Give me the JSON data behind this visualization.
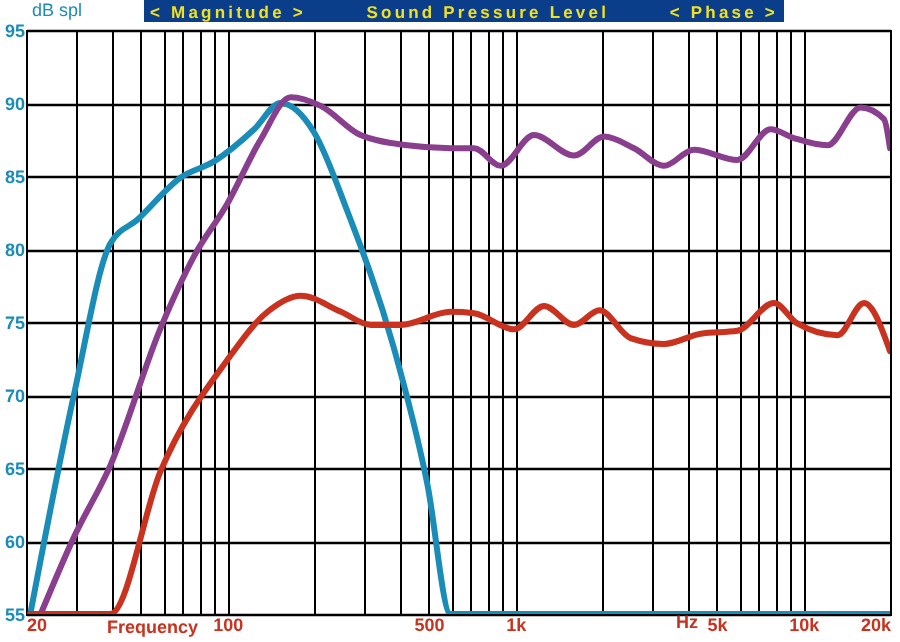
{
  "chart_data": {
    "type": "line",
    "title": "Sound Pressure Level",
    "ylabel": "dB spl",
    "xlabel": "Frequency",
    "annotations": [
      "< Magnitude >",
      "< Phase >",
      "Hz"
    ],
    "log": "x",
    "grid": true,
    "marker": "none",
    "line_style": "solid",
    "xlim": [
      20,
      20000
    ],
    "ylim": [
      55,
      95
    ],
    "xticks": [
      20,
      {
        "value": 30,
        "label": null
      },
      {
        "value": 40,
        "label": null
      },
      {
        "value": 50,
        "label": null
      },
      {
        "value": 60,
        "label": null
      },
      {
        "value": 70,
        "label": null
      },
      {
        "value": 80,
        "label": null
      },
      {
        "value": 90,
        "label": null
      },
      100,
      {
        "value": 200,
        "label": null
      },
      {
        "value": 300,
        "label": null
      },
      {
        "value": 400,
        "label": null
      },
      500,
      {
        "value": 600,
        "label": null
      },
      {
        "value": 700,
        "label": null
      },
      {
        "value": 800,
        "label": null
      },
      {
        "value": 900,
        "label": null
      },
      {
        "value": 1000,
        "label": "1k"
      },
      {
        "value": 2000,
        "label": null
      },
      {
        "value": 3000,
        "label": null
      },
      {
        "value": 4000,
        "label": null
      },
      {
        "value": 5000,
        "label": "5k"
      },
      {
        "value": 6000,
        "label": null
      },
      {
        "value": 7000,
        "label": null
      },
      {
        "value": 8000,
        "label": null
      },
      {
        "value": 9000,
        "label": null
      },
      {
        "value": 10000,
        "label": "10k"
      },
      {
        "value": 20000,
        "label": "20k"
      }
    ],
    "yticks": [
      55,
      60,
      65,
      70,
      75,
      80,
      85,
      90,
      95
    ],
    "series": [
      {
        "color": "#1a8cb8",
        "x": [
          20.7,
          29.4,
          39.3,
          48.7,
          68.9,
          90,
          124,
          153,
          200,
          261,
          379,
          495,
          596,
          20000
        ],
        "values": [
          55,
          70.1,
          80.4,
          82,
          84.9,
          86,
          88.2,
          90,
          88,
          82.6,
          73.2,
          63.9,
          55,
          55
        ]
      },
      {
        "color": "#8a3f8e",
        "x": [
          22.5,
          29.4,
          39.3,
          58.7,
          76.6,
          100,
          130.6,
          166,
          211,
          290,
          422,
          596,
          719,
          890,
          1161,
          1600,
          2033,
          2583,
          3283,
          4170,
          5900,
          7700,
          9280,
          12130,
          15820,
          19060,
          20000
        ],
        "values": [
          55,
          60.3,
          65.2,
          74.6,
          79.5,
          83.1,
          87.5,
          90.4,
          89.8,
          87.8,
          87.1,
          86.9,
          86.9,
          85.7,
          87.8,
          86.4,
          87.7,
          86.9,
          85.7,
          86.8,
          86.1,
          88.2,
          87.6,
          87.1,
          89.7,
          88.9,
          86.9
        ]
      },
      {
        "color": "#c8321e",
        "x": [
          20.7,
          39.3,
          58.7,
          100,
          138,
          180,
          248,
          315,
          400,
          596,
          719,
          989,
          1259,
          1600,
          1960,
          2512,
          3283,
          4400,
          5900,
          7910,
          9530,
          13130,
          16250,
          20000
        ],
        "values": [
          55,
          55,
          64.8,
          72.4,
          75.7,
          76.8,
          75.7,
          74.8,
          74.8,
          75.7,
          75.6,
          74.5,
          76.1,
          74.8,
          75.8,
          73.9,
          73.5,
          74.2,
          74.4,
          76.3,
          74.9,
          74.1,
          76.3,
          73
        ]
      }
    ]
  }
}
